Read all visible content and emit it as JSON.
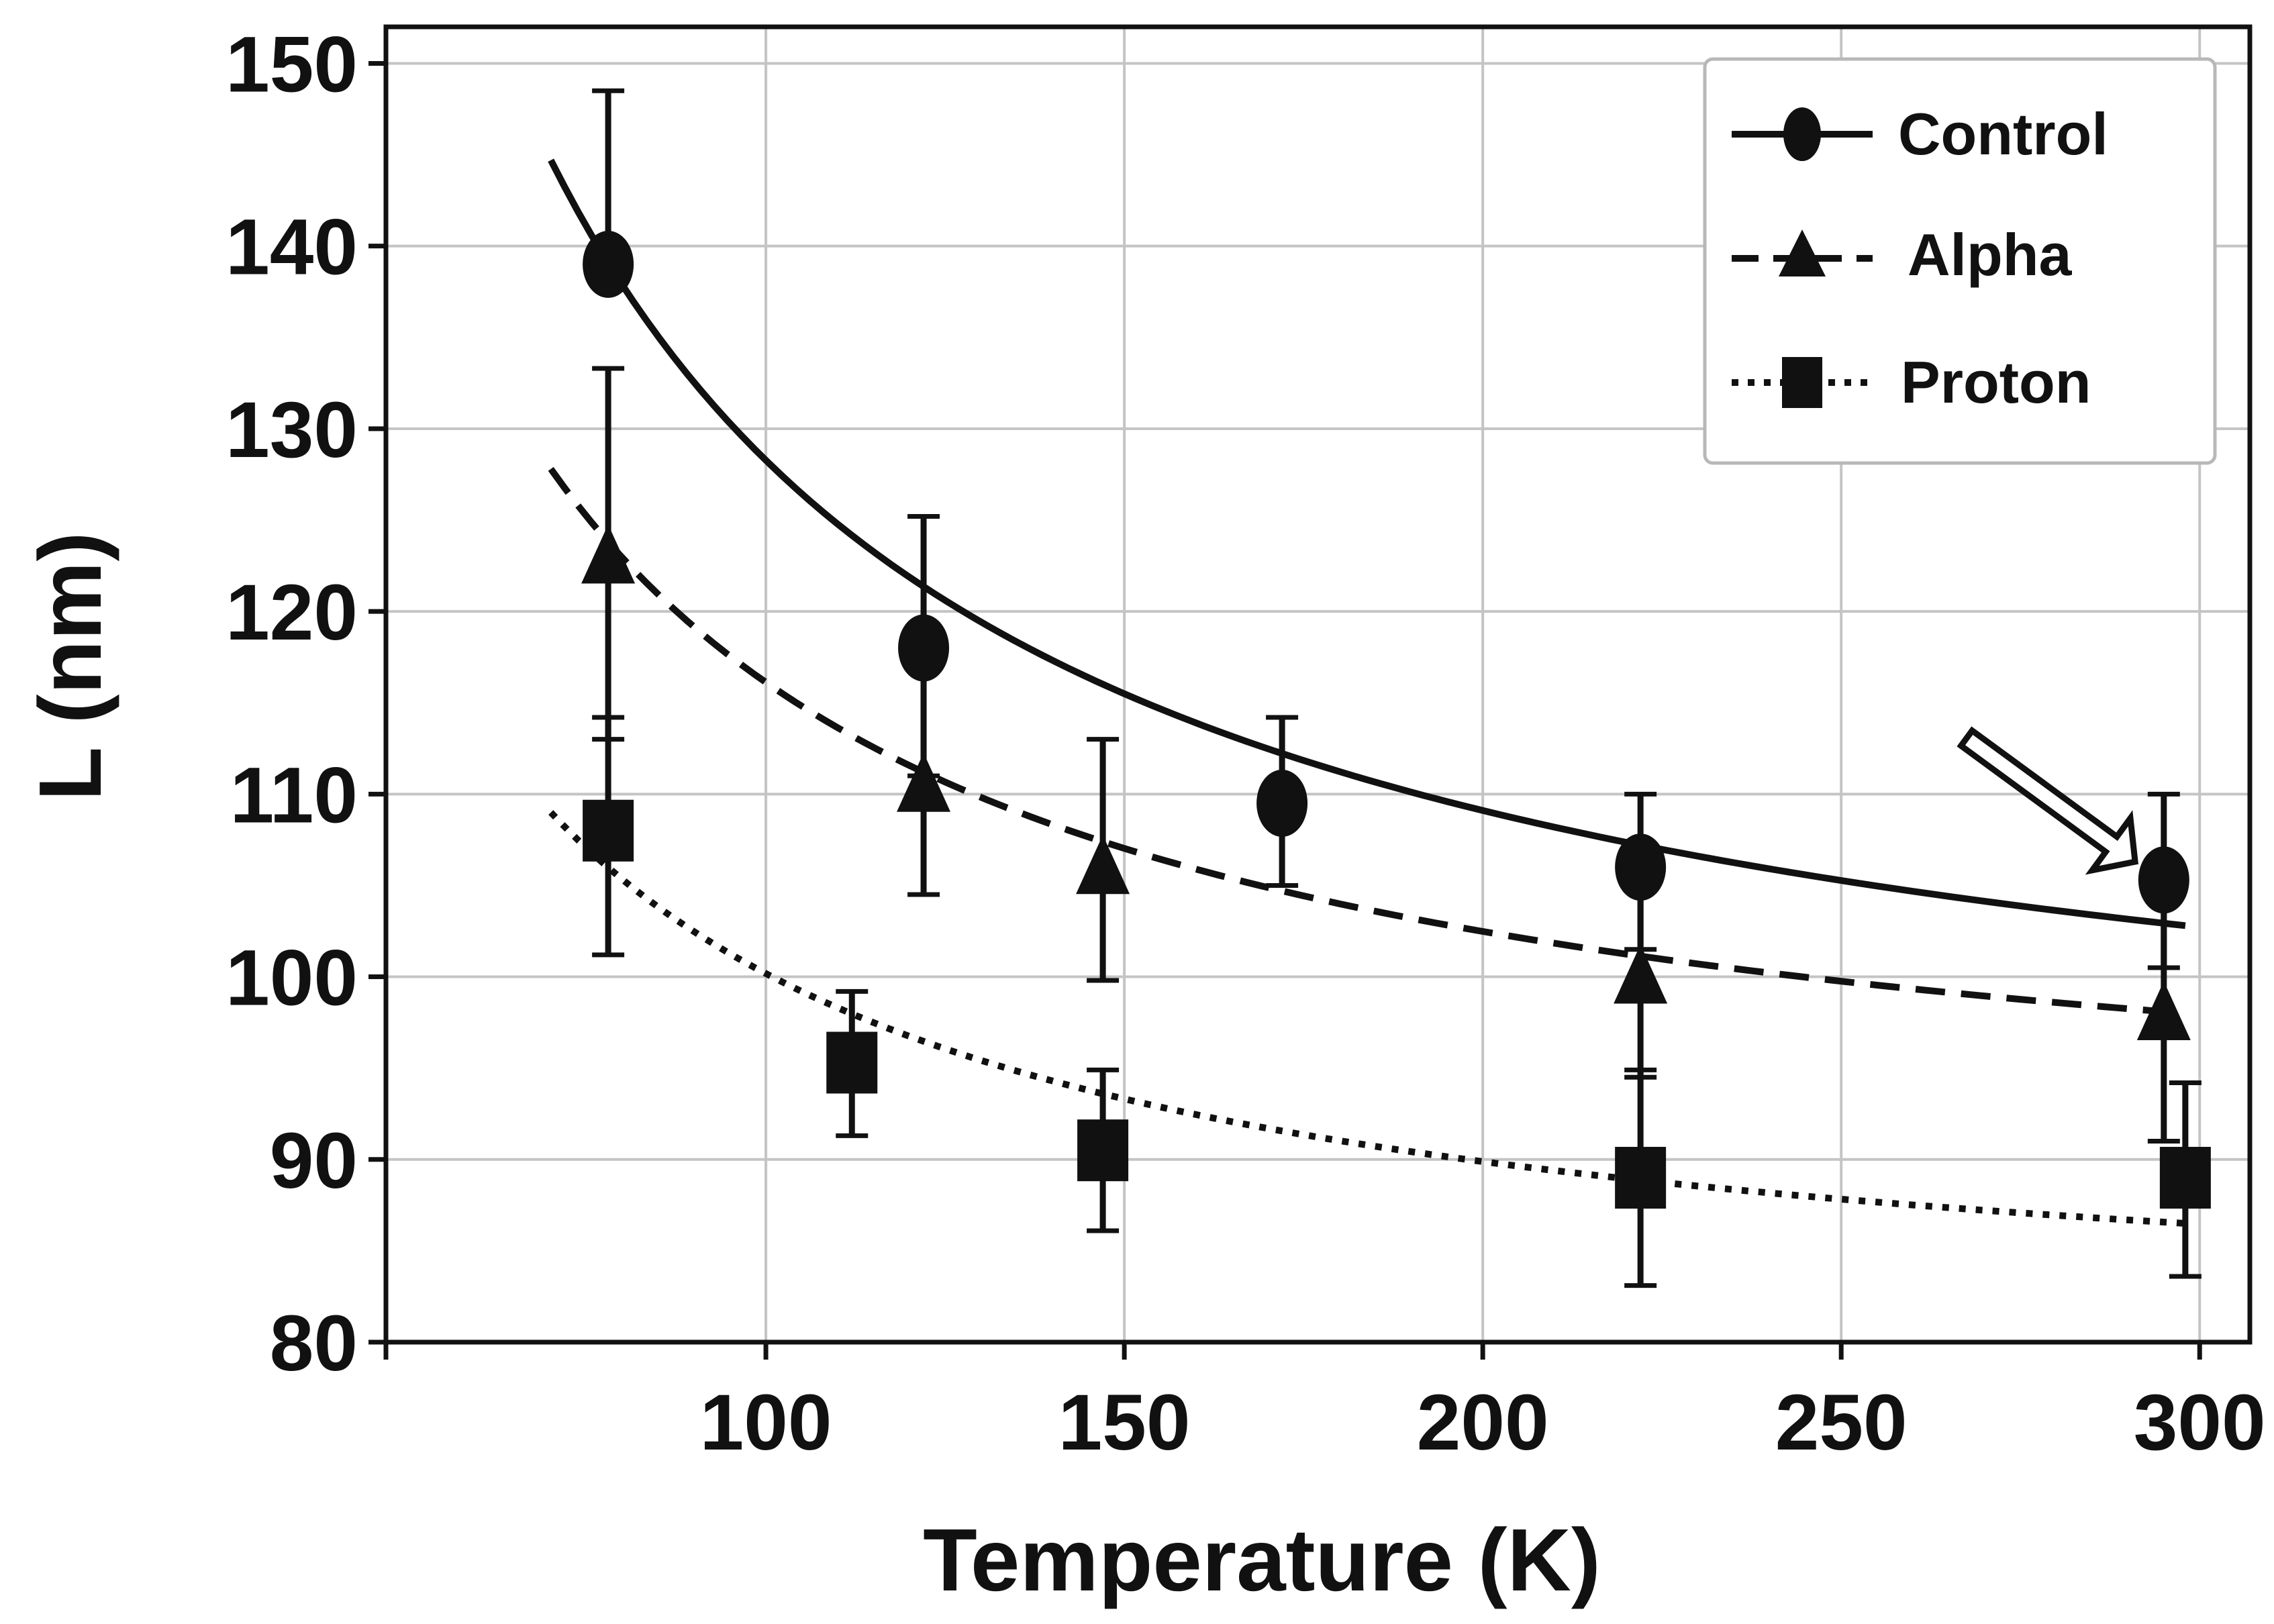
{
  "chart_data": {
    "type": "scatter",
    "title": "",
    "xlabel": "Temperature (K)",
    "ylabel": "L (nm)",
    "xlim": [
      47,
      307
    ],
    "ylim": [
      80,
      152
    ],
    "xticks": [
      100,
      150,
      200,
      250,
      300
    ],
    "yticks": [
      80,
      90,
      100,
      110,
      120,
      130,
      140,
      150
    ],
    "grid": true,
    "legend_position": "top-right",
    "series": [
      {
        "name": "Control",
        "marker": "circle",
        "line_style": "solid",
        "x": [
          78,
          122,
          172,
          222,
          295
        ],
        "y": [
          139,
          118,
          109.5,
          106,
          105.3
        ],
        "err_low": [
          139,
          111,
          105,
          101.5,
          100.5
        ],
        "err_high": [
          148.5,
          125.2,
          114.2,
          110,
          110
        ],
        "fit": {
          "x0": 70,
          "x1": 298,
          "y0": 144.7,
          "y1": 102.8
        }
      },
      {
        "name": "Alpha",
        "marker": "triangle",
        "line_style": "dashed",
        "x": [
          78,
          122,
          147,
          222,
          295
        ],
        "y": [
          123,
          110.5,
          106,
          100,
          98
        ],
        "err_low": [
          113,
          104.5,
          99.8,
          94.5,
          91
        ],
        "err_high": [
          133.3,
          117,
          113,
          106,
          104.5
        ],
        "fit": {
          "x0": 70,
          "x1": 298,
          "y0": 127.8,
          "y1": 98
        }
      },
      {
        "name": "Proton",
        "marker": "square",
        "line_style": "dotted",
        "x": [
          78,
          112,
          147,
          222,
          298
        ],
        "y": [
          108,
          95.3,
          90.5,
          89,
          89
        ],
        "err_low": [
          101.2,
          91.3,
          86.1,
          83.1,
          83.6
        ],
        "err_high": [
          114.2,
          99.2,
          94.9,
          94.9,
          94.2
        ],
        "fit": {
          "x0": 70,
          "x1": 298,
          "y0": 109,
          "y1": 86.5
        }
      }
    ],
    "annotations": [
      {
        "type": "arrow",
        "points_to": "Control at 295 K",
        "x": 291,
        "y": 106.3
      }
    ]
  }
}
